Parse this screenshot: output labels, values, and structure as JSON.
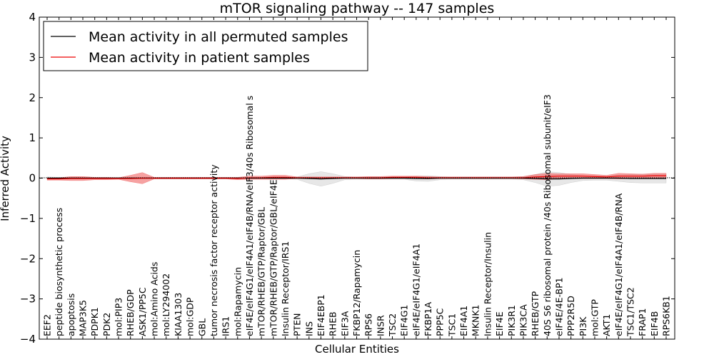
{
  "chart_data": {
    "type": "line",
    "title": "mTOR signaling pathway -- 147 samples",
    "xlabel": "Cellular Entities",
    "ylabel": "Inferred Activity",
    "ylim": [
      -4,
      4
    ],
    "yticks": [
      -4,
      -3,
      -2,
      -1,
      0,
      1,
      2,
      3,
      4
    ],
    "ytick_labels": [
      "−4",
      "−3",
      "−2",
      "−1",
      "0",
      "1",
      "2",
      "3",
      "4"
    ],
    "legend_position": "top-left",
    "categories": [
      "EEF2",
      "peptide biosynthetic process",
      "apoptosis",
      "MAP3K5",
      "PDPK1",
      "PDK2",
      "mol:PIP3",
      "RHEB/GDP",
      "ASK1/PP5C",
      "mol:Amino Acids",
      "mol:LY294002",
      "KIAA1303",
      "mol:GDP",
      "GBL",
      "tumor necrosis factor receptor activity",
      "IRS1",
      "mol:Rapamycin",
      "eIF4E/eIF4G1/eIF4A1/eIF4B/RNA/eIF3/40s Ribosomal s",
      "mTOR/RHEB/GTP/Raptor/GBL",
      "mTOR/RHEB/GTP/Raptor/GBL/eIF4E",
      "Insulin Receptor/IRS1",
      "PTEN",
      "INS",
      "EIF4EBP1",
      "RHEB",
      "EIF3A",
      "FKBP12/Rapamycin",
      "RPS6",
      "INSR",
      "TSC2",
      "EIF4G1",
      "eIF4E/eIF4G1/eIF4A1",
      "FKBP1A",
      "PPP5C",
      "TSC1",
      "EIF4A1",
      "MKNK1",
      "Insulin Receptor/Insulin",
      "EIF4E",
      "PIK3R1",
      "PIK3CA",
      "RHEB/GTP",
      "40S S6 ribosomal protein /40s Ribosomal subunit/eIF3",
      "eIF4E/4E-BP1",
      "PPP2R5D",
      "PI3K",
      "mol:GTP",
      "AKT1",
      "eIF4E/eIF4G1/eIF4A1/eIF4B/RNA",
      "TSC1/TSC2",
      "FRAP1",
      "EIF4B",
      "RPS6KB1"
    ],
    "series": [
      {
        "name": "Mean activity in all permuted samples",
        "color": "#000000",
        "band_color": "#bbbbbb",
        "values": [
          0,
          0,
          0,
          0,
          0,
          0,
          0,
          0,
          0,
          0,
          0,
          0,
          0,
          0,
          0,
          0,
          0,
          0,
          0,
          0,
          0,
          0,
          -0.01,
          -0.02,
          -0.01,
          0,
          0,
          0,
          0,
          0,
          0,
          -0.01,
          -0.01,
          0,
          0,
          0,
          0,
          0,
          0,
          0,
          0,
          -0.01,
          -0.02,
          -0.02,
          -0.01,
          0,
          0,
          0,
          0,
          -0.01,
          -0.01,
          -0.01,
          -0.01
        ],
        "band_halfwidth": [
          0.03,
          0.02,
          0.02,
          0.02,
          0.02,
          0.02,
          0.02,
          0.02,
          0.02,
          0.02,
          0.02,
          0.02,
          0.02,
          0.02,
          0.02,
          0.02,
          0.02,
          0.02,
          0.02,
          0.02,
          0.02,
          0.03,
          0.12,
          0.18,
          0.12,
          0.04,
          0.03,
          0.03,
          0.03,
          0.03,
          0.03,
          0.06,
          0.07,
          0.04,
          0.03,
          0.03,
          0.03,
          0.03,
          0.03,
          0.03,
          0.04,
          0.1,
          0.18,
          0.16,
          0.1,
          0.06,
          0.05,
          0.05,
          0.08,
          0.1,
          0.11,
          0.11,
          0.11
        ]
      },
      {
        "name": "Mean activity in patient samples",
        "color": "#ee0000",
        "band_color": "#ee5555",
        "values": [
          -0.02,
          -0.02,
          -0.01,
          -0.01,
          -0.01,
          -0.01,
          -0.01,
          -0.01,
          0,
          0,
          0,
          0,
          0,
          0,
          0,
          0,
          -0.01,
          0.01,
          0.01,
          0.02,
          0.02,
          0.01,
          0.01,
          0.01,
          0.01,
          0.01,
          0.01,
          0.01,
          0.01,
          0.02,
          0.02,
          0.02,
          0.01,
          0.01,
          0.01,
          0.01,
          0.01,
          0.01,
          0.01,
          0.01,
          0.01,
          0.03,
          0.04,
          0.05,
          0.05,
          0.05,
          0.04,
          0.03,
          0.05,
          0.05,
          0.05,
          0.06,
          0.06
        ],
        "band_halfwidth": [
          0.03,
          0.03,
          0.05,
          0.05,
          0.03,
          0.03,
          0.02,
          0.08,
          0.14,
          0.02,
          0.02,
          0.02,
          0.02,
          0.02,
          0.02,
          0.02,
          0.03,
          0.04,
          0.04,
          0.05,
          0.05,
          0.02,
          0.02,
          0.02,
          0.02,
          0.02,
          0.02,
          0.03,
          0.03,
          0.03,
          0.03,
          0.03,
          0.03,
          0.02,
          0.02,
          0.02,
          0.02,
          0.02,
          0.02,
          0.02,
          0.03,
          0.06,
          0.08,
          0.06,
          0.06,
          0.06,
          0.05,
          0.04,
          0.07,
          0.06,
          0.05,
          0.06,
          0.06
        ]
      }
    ]
  }
}
